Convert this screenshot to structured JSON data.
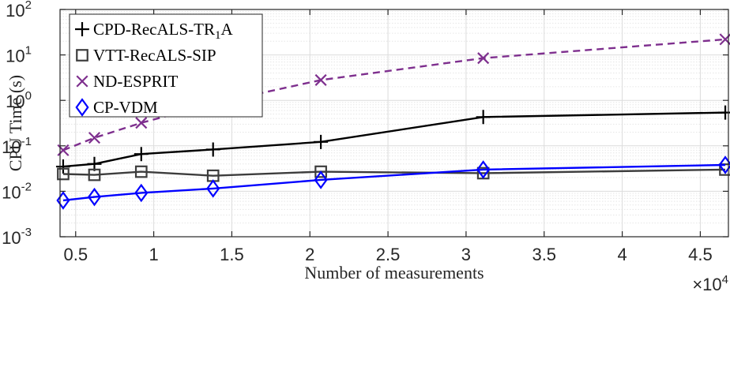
{
  "chart_data": {
    "type": "line",
    "xlabel": "Number of measurements",
    "ylabel": "CPU Time (s)",
    "x_multiplier": "×10",
    "x_multiplier_exp": "4",
    "xlim": [
      0.4,
      4.68
    ],
    "ylim": [
      0.001,
      100
    ],
    "yscale": "log",
    "grid": true,
    "legend_position": "top-left",
    "x_ticks": [
      0.5,
      1,
      1.5,
      2,
      2.5,
      3,
      3.5,
      4,
      4.5
    ],
    "x_tick_labels": [
      "0.5",
      "1",
      "1.5",
      "2",
      "2.5",
      "3",
      "3.5",
      "4",
      "4.5"
    ],
    "y_ticks": [
      {
        "value": 0.001,
        "base": "10",
        "exp": "-3"
      },
      {
        "value": 0.01,
        "base": "10",
        "exp": "-2"
      },
      {
        "value": 0.1,
        "base": "10",
        "exp": "-1"
      },
      {
        "value": 1,
        "base": "10",
        "exp": "0"
      },
      {
        "value": 10,
        "base": "10",
        "exp": "1"
      },
      {
        "value": 100,
        "base": "10",
        "exp": "2"
      }
    ],
    "x": [
      0.42,
      0.62,
      0.92,
      1.38,
      2.07,
      3.11,
      4.66
    ],
    "series": [
      {
        "name": "CPD-RecALS-TR",
        "name_sub": "1",
        "name_suffix": "A",
        "color": "#000000",
        "marker": "plus",
        "dash": "solid",
        "values": [
          0.035,
          0.04,
          0.066,
          0.083,
          0.122,
          0.43,
          0.54
        ]
      },
      {
        "name": "VTT-RecALS-SIP",
        "color": "#3d3d3d",
        "marker": "square",
        "dash": "solid",
        "values": [
          0.024,
          0.023,
          0.027,
          0.022,
          0.027,
          0.025,
          0.03
        ]
      },
      {
        "name": "ND-ESPRIT",
        "color": "#7e2f8e",
        "marker": "x",
        "dash": "dashed",
        "values": [
          0.08,
          0.15,
          0.32,
          0.85,
          2.8,
          8.5,
          22
        ]
      },
      {
        "name": "CP-VDM",
        "color": "#0000ff",
        "marker": "diamond",
        "dash": "solid",
        "values": [
          0.0063,
          0.0075,
          0.0092,
          0.0115,
          0.0178,
          0.03,
          0.038
        ]
      }
    ]
  }
}
